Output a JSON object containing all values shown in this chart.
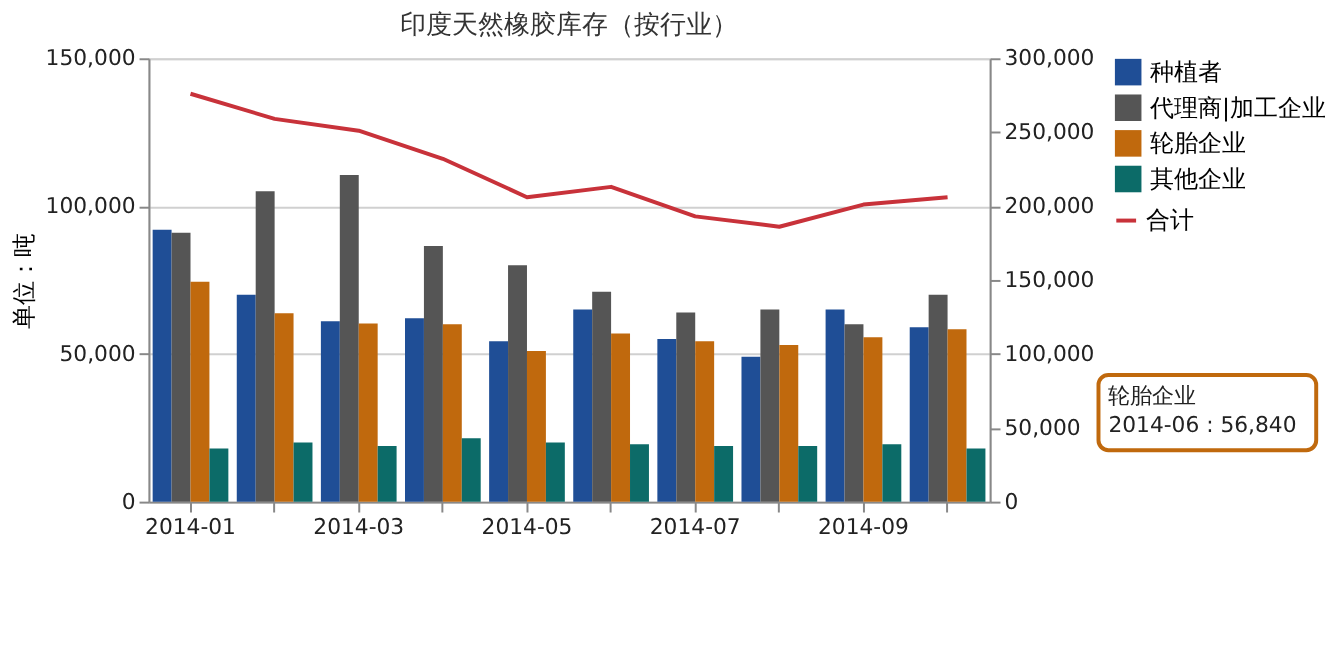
{
  "chart_data": {
    "type": "bar",
    "title": "印度天然橡胶库存（按行业）",
    "ylabel": "单位：吨",
    "categories": [
      "2014-01",
      null,
      "2014-03",
      null,
      "2014-05",
      null,
      "2014-07",
      null,
      "2014-09",
      null
    ],
    "series": [
      {
        "name": "种植者",
        "color": "#1f4e96",
        "values": [
          92000,
          70000,
          61000,
          62000,
          54300,
          65000,
          55000,
          49000,
          65000,
          59000
        ]
      },
      {
        "name": "代理商|加工企业",
        "color": "#555555",
        "values": [
          91000,
          105000,
          110500,
          86500,
          80000,
          71000,
          64000,
          65000,
          60000,
          70000
        ]
      },
      {
        "name": "轮胎企业",
        "color": "#c0690d",
        "values": [
          74400,
          63700,
          60300,
          60000,
          51000,
          56840,
          54300,
          53000,
          55600,
          58300
        ]
      },
      {
        "name": "其他企业",
        "color": "#0c6b68",
        "values": [
          18000,
          20000,
          18800,
          21400,
          20000,
          19400,
          18800,
          18800,
          19400,
          18000
        ]
      },
      {
        "name": "合计",
        "type": "line",
        "axis": "y2",
        "color": "#c8323a",
        "values": [
          276000,
          259000,
          251000,
          232000,
          206000,
          213000,
          193000,
          186000,
          201000,
          206000
        ]
      }
    ],
    "ylim": [
      0,
      150000
    ],
    "yticks": [
      {
        "value": 0,
        "label": "0"
      },
      {
        "value": 50000,
        "label": "50,000"
      },
      {
        "value": 100000,
        "label": "100,000"
      },
      {
        "value": 150000,
        "label": "150,000"
      }
    ],
    "y2lim": [
      0,
      300000
    ],
    "y2ticks": [
      {
        "value": 0,
        "label": "0"
      },
      {
        "value": 50000,
        "label": "50,000"
      },
      {
        "value": 100000,
        "label": "100,000"
      },
      {
        "value": 150000,
        "label": "150,000"
      },
      {
        "value": 200000,
        "label": "200,000"
      },
      {
        "value": 250000,
        "label": "250,000"
      },
      {
        "value": 300000,
        "label": "300,000"
      }
    ],
    "grid": "y",
    "legend": "right",
    "marker": "none",
    "line_style": "solid",
    "annotations": [
      "轮胎企业\n2014-06 : 56,840"
    ]
  }
}
